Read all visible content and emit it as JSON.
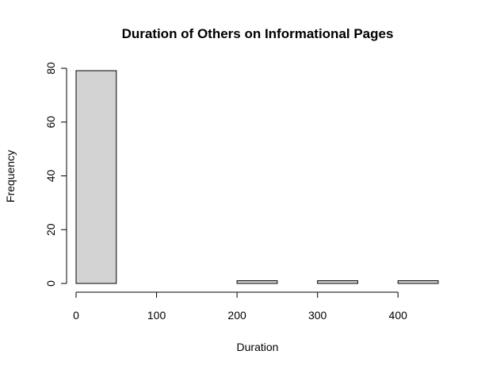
{
  "chart_data": {
    "type": "bar",
    "title": "Duration of Others on Informational Pages",
    "xlabel": "Duration",
    "ylabel": "Frequency",
    "bins": [
      {
        "from": 0,
        "to": 50,
        "count": 78
      },
      {
        "from": 50,
        "to": 100,
        "count": 0
      },
      {
        "from": 100,
        "to": 150,
        "count": 0
      },
      {
        "from": 150,
        "to": 200,
        "count": 0
      },
      {
        "from": 200,
        "to": 250,
        "count": 1
      },
      {
        "from": 250,
        "to": 300,
        "count": 0
      },
      {
        "from": 300,
        "to": 350,
        "count": 1
      },
      {
        "from": 350,
        "to": 400,
        "count": 0
      },
      {
        "from": 400,
        "to": 450,
        "count": 1
      }
    ],
    "xticks": [
      "0",
      "100",
      "200",
      "300",
      "400"
    ],
    "yticks": [
      "0",
      "20",
      "40",
      "60",
      "80"
    ],
    "xlim": [
      0,
      450
    ],
    "ylim": [
      0,
      80
    ],
    "grid": false,
    "colors": {
      "bar_fill": "#d3d3d3",
      "bar_stroke": "#000000"
    }
  }
}
